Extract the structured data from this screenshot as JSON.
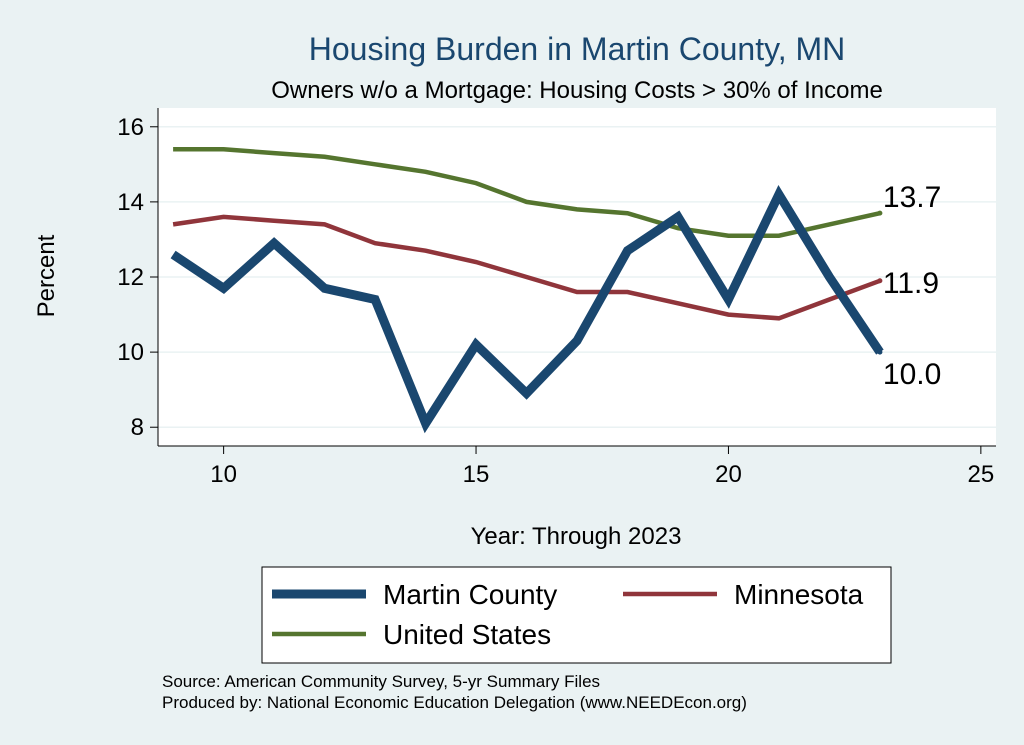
{
  "chart_data": {
    "type": "line",
    "title": "Housing Burden in Martin County, MN",
    "subtitle": "Owners w/o a Mortgage: Housing Costs > 30% of Income",
    "xlabel": "Year: Through 2023",
    "ylabel": "Percent",
    "xlim": [
      8.7,
      25.3
    ],
    "ylim": [
      7.5,
      16.5
    ],
    "xticks": [
      10,
      15,
      20,
      25
    ],
    "yticks": [
      8,
      10,
      12,
      14,
      16
    ],
    "grid": true,
    "legend_position": "bottom",
    "x": [
      9,
      10,
      11,
      12,
      13,
      14,
      15,
      16,
      17,
      18,
      19,
      20,
      21,
      22,
      23
    ],
    "series": [
      {
        "name": "Martin County",
        "color": "#1a476f",
        "values": [
          12.6,
          11.7,
          12.9,
          11.7,
          11.4,
          8.1,
          10.2,
          8.9,
          10.3,
          12.7,
          13.6,
          11.4,
          14.2,
          12.0,
          10.0
        ],
        "end_label": "10.0"
      },
      {
        "name": "Minnesota",
        "color": "#90353b",
        "values": [
          13.4,
          13.6,
          13.5,
          13.4,
          12.9,
          12.7,
          12.4,
          12.0,
          11.6,
          11.6,
          11.3,
          11.0,
          10.9,
          11.4,
          11.9
        ],
        "end_label": "11.9"
      },
      {
        "name": "United States",
        "color": "#55752f",
        "values": [
          15.4,
          15.4,
          15.3,
          15.2,
          15.0,
          14.8,
          14.5,
          14.0,
          13.8,
          13.7,
          13.3,
          13.1,
          13.1,
          13.4,
          13.7
        ],
        "end_label": "13.7"
      }
    ],
    "notes": [
      "Source: American Community Survey, 5-yr Summary Files",
      "Produced by: National Economic Education Delegation (www.NEEDEcon.org)"
    ]
  }
}
